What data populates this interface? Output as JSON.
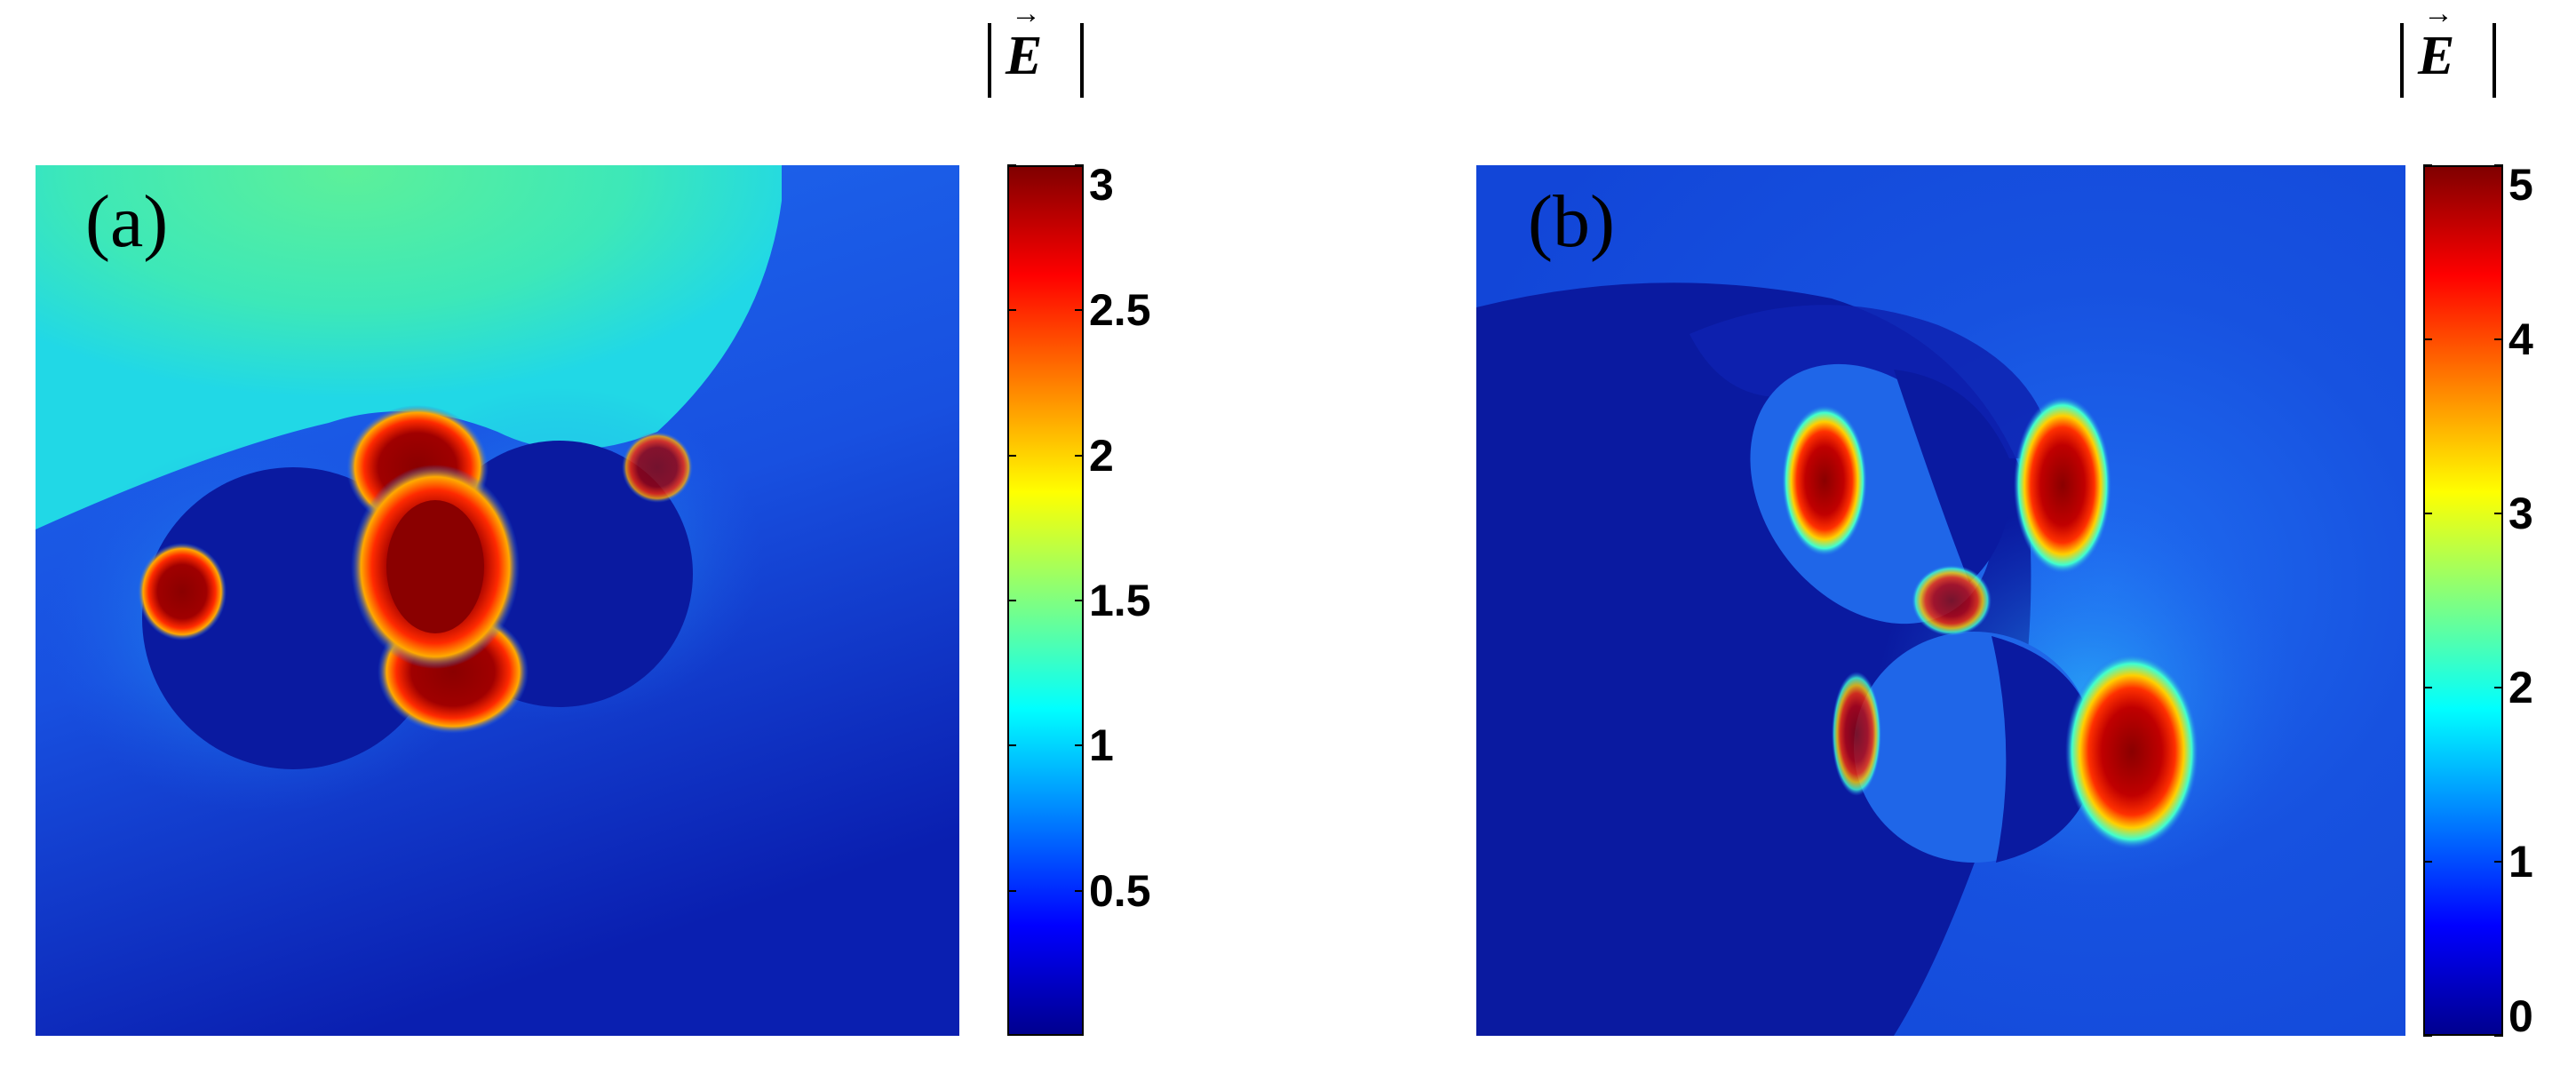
{
  "chart_data": [
    {
      "type": "heatmap",
      "panel_label": "(a)",
      "colorbar": {
        "title": "E",
        "colormap": "jet",
        "range": [
          0,
          3
        ],
        "ticks": [
          {
            "value": 0.5,
            "label": "0.5"
          },
          {
            "value": 1,
            "label": "1"
          },
          {
            "value": 1.5,
            "label": "1.5"
          },
          {
            "value": 2,
            "label": "2"
          },
          {
            "value": 2.5,
            "label": "2.5"
          },
          {
            "value": 3,
            "label": "3"
          }
        ]
      },
      "structure": "two overlapping dark-blue circular particles with a central hot spot (max field) between them; light-green field region above"
    },
    {
      "type": "heatmap",
      "panel_label": "(b)",
      "colorbar": {
        "title": "E",
        "colormap": "jet",
        "range": [
          0,
          5
        ],
        "ticks": [
          {
            "value": 0,
            "label": "0"
          },
          {
            "value": 1,
            "label": "1"
          },
          {
            "value": 2,
            "label": "2"
          },
          {
            "value": 3,
            "label": "3"
          },
          {
            "value": 4,
            "label": "4"
          },
          {
            "value": 5,
            "label": "5"
          }
        ]
      },
      "structure": "two blue elliptical particles arranged diagonally with red hot spots at their outer edges; dark blue background"
    }
  ]
}
